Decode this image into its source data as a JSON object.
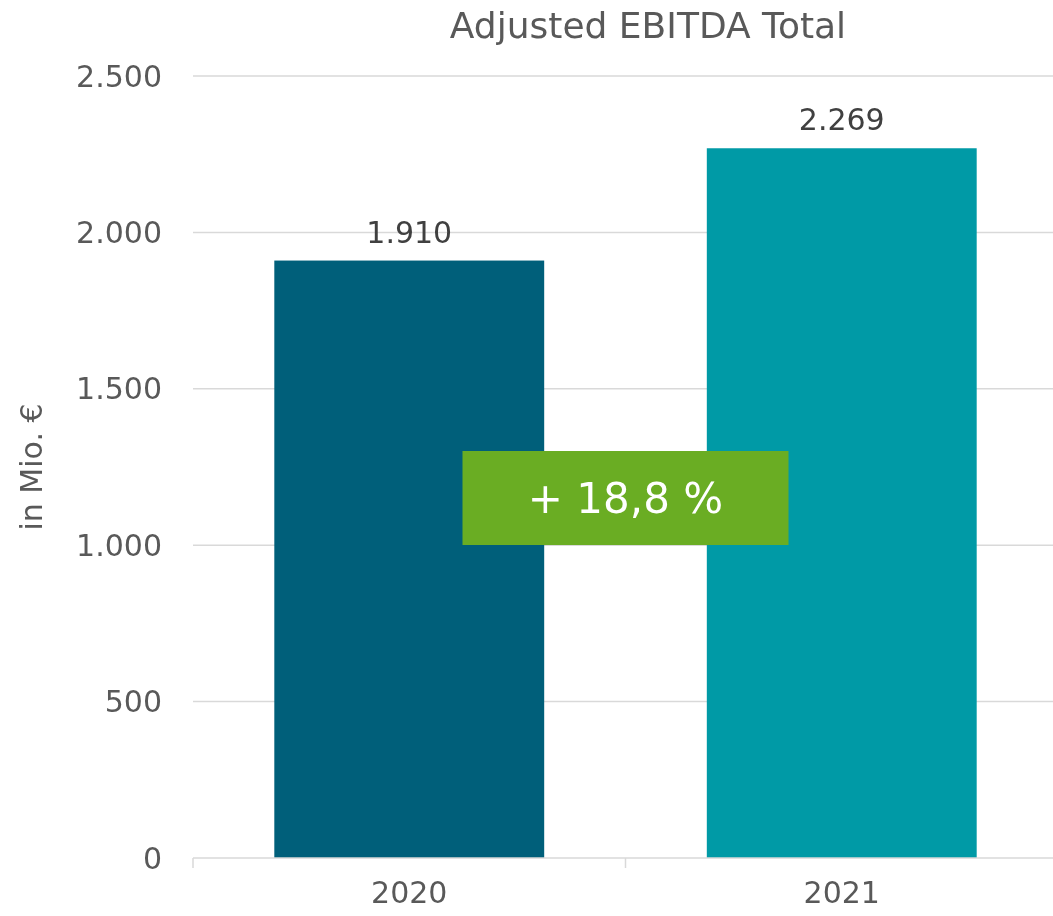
{
  "chart_data": {
    "type": "bar",
    "title": "Adjusted EBITDA Total",
    "ylabel": "in Mio. €",
    "categories": [
      "2020",
      "2021"
    ],
    "values": [
      1910,
      2269
    ],
    "colors": [
      "#005f7a",
      "#009aa6"
    ],
    "value_labels": [
      "1.910",
      "2.269"
    ],
    "ylim": [
      0,
      2500
    ],
    "yticks": [
      {
        "value": 0,
        "label": "0"
      },
      {
        "value": 500,
        "label": "500"
      },
      {
        "value": 1000,
        "label": "1.000"
      },
      {
        "value": 1500,
        "label": "1.500"
      },
      {
        "value": 2000,
        "label": "2.000"
      },
      {
        "value": 2500,
        "label": "2.500"
      }
    ],
    "grid": "y",
    "annotations": [
      "+ 18,8 %"
    ]
  }
}
